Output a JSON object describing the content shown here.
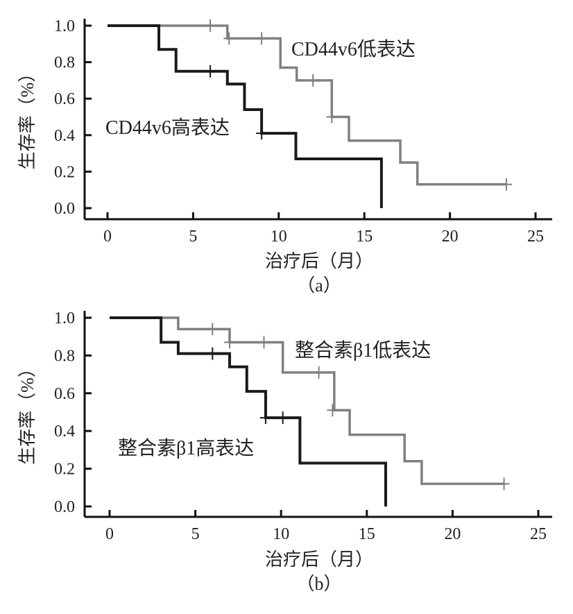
{
  "chart_data": [
    {
      "type": "line",
      "subtype": "kaplan-meier-step",
      "caption": "（a）",
      "xlabel": "治疗后（月）",
      "ylabel": "生存率（%）",
      "xlim": [
        0,
        25
      ],
      "ylim": [
        0,
        1
      ],
      "xticks": [
        "0",
        "5",
        "10",
        "15",
        "20",
        "25"
      ],
      "yticks": [
        "0.0",
        "0.2",
        "0.4",
        "0.6",
        "0.8",
        "1.0"
      ],
      "grid": false,
      "series": [
        {
          "name": "CD44v6低表达",
          "color": "#808080",
          "steps": [
            [
              0,
              1.0
            ],
            [
              7,
              0.93
            ],
            [
              10.1,
              0.77
            ],
            [
              11.05,
              0.7
            ],
            [
              13.1,
              0.5
            ],
            [
              14.1,
              0.37
            ],
            [
              17.1,
              0.25
            ],
            [
              18.1,
              0.13
            ]
          ],
          "end": 23.3,
          "censored": [
            [
              6,
              1.0
            ],
            [
              7.1,
              0.93
            ],
            [
              9,
              0.93
            ],
            [
              12,
              0.7
            ],
            [
              13.1,
              0.5
            ],
            [
              23.3,
              0.13
            ]
          ]
        },
        {
          "name": "CD44v6高表达",
          "color": "#1a1a1a",
          "steps": [
            [
              0,
              1.0
            ],
            [
              3,
              0.87
            ],
            [
              4,
              0.75
            ],
            [
              7,
              0.68
            ],
            [
              8,
              0.54
            ],
            [
              9,
              0.41
            ],
            [
              11,
              0.27
            ],
            [
              16,
              0
            ]
          ],
          "end": 16,
          "censored": [
            [
              6,
              0.75
            ],
            [
              9,
              0.41
            ]
          ]
        }
      ]
    },
    {
      "type": "line",
      "subtype": "kaplan-meier-step",
      "caption": "（b）",
      "xlabel": "治疗后（月）",
      "ylabel": "生存率（%）",
      "xlim": [
        0,
        25
      ],
      "ylim": [
        0,
        1
      ],
      "xticks": [
        "0",
        "5",
        "10",
        "15",
        "20",
        "25"
      ],
      "yticks": [
        "0.0",
        "0.2",
        "0.4",
        "0.6",
        "0.8",
        "1.0"
      ],
      "grid": false,
      "series": [
        {
          "name": "整合素β1低表达",
          "color": "#808080",
          "steps": [
            [
              0,
              1.0
            ],
            [
              4,
              0.94
            ],
            [
              7,
              0.87
            ],
            [
              10.1,
              0.71
            ],
            [
              13.1,
              0.51
            ],
            [
              14,
              0.38
            ],
            [
              17.2,
              0.24
            ],
            [
              18.2,
              0.12
            ]
          ],
          "end": 23,
          "censored": [
            [
              6,
              0.94
            ],
            [
              7,
              0.87
            ],
            [
              9,
              0.87
            ],
            [
              12.2,
              0.71
            ],
            [
              13,
              0.51
            ],
            [
              23,
              0.12
            ]
          ]
        },
        {
          "name": "整合素β1高表达",
          "color": "#1a1a1a",
          "steps": [
            [
              0,
              1.0
            ],
            [
              3,
              0.87
            ],
            [
              4,
              0.81
            ],
            [
              7,
              0.74
            ],
            [
              8,
              0.61
            ],
            [
              9.1,
              0.47
            ],
            [
              11.1,
              0.23
            ],
            [
              16.1,
              0
            ]
          ],
          "end": 16.1,
          "censored": [
            [
              6,
              0.81
            ],
            [
              9.1,
              0.47
            ],
            [
              10.1,
              0.47
            ]
          ]
        }
      ]
    }
  ]
}
